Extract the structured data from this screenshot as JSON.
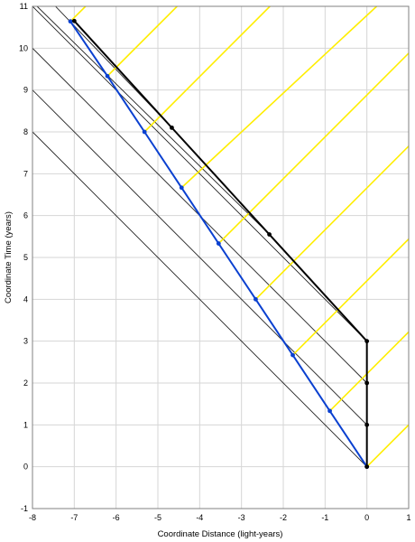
{
  "chart_data": {
    "type": "line",
    "xlabel": "Coordinate Distance (light-years)",
    "ylabel": "Coordinate Time (years)",
    "xlim": [
      -8,
      1
    ],
    "ylim": [
      -1,
      11
    ],
    "x_ticks": [
      -8,
      -7,
      -6,
      -5,
      -4,
      -3,
      -2,
      -1,
      0,
      1
    ],
    "y_ticks": [
      -1,
      0,
      1,
      2,
      3,
      4,
      5,
      6,
      7,
      8,
      9,
      10,
      11
    ],
    "grid": true,
    "legend": "none",
    "colors": {
      "grid": "#d6d6d6",
      "yellow": "#ffee00",
      "thin": "#202020",
      "black": "#000000",
      "blue": "#0a40d0"
    },
    "series": [
      {
        "style": "blue-path",
        "x": [
          0,
          -0.887,
          -1.773,
          -2.66,
          -3.547,
          -4.433,
          -5.32,
          -6.207,
          -7.093
        ],
        "y": [
          0,
          1.333,
          2.667,
          4.0,
          5.333,
          6.667,
          8.0,
          9.333,
          10.64
        ]
      },
      {
        "style": "black-path",
        "x": [
          0,
          0,
          0,
          0,
          -2.333,
          -4.667,
          -7.0
        ],
        "y": [
          0,
          1,
          2,
          3,
          5.55,
          8.1,
          10.65
        ]
      }
    ],
    "thin_lines": [
      {
        "x": [
          0,
          -8
        ],
        "y": [
          0,
          8
        ]
      },
      {
        "x": [
          0,
          -8
        ],
        "y": [
          1,
          9
        ]
      },
      {
        "x": [
          0,
          -8
        ],
        "y": [
          2,
          10
        ]
      },
      {
        "x": [
          0,
          -8
        ],
        "y": [
          3,
          11
        ]
      },
      {
        "x": [
          -2.333,
          -7.89
        ],
        "y": [
          5.55,
          11
        ]
      },
      {
        "x": [
          -4.667,
          -7.45
        ],
        "y": [
          8.1,
          11
        ]
      }
    ],
    "yellow_lines": [
      {
        "x": [
          0,
          1
        ],
        "y": [
          0,
          1
        ]
      },
      {
        "x": [
          -0.887,
          1
        ],
        "y": [
          1.333,
          3.22
        ]
      },
      {
        "x": [
          -1.773,
          1
        ],
        "y": [
          2.667,
          5.44
        ]
      },
      {
        "x": [
          -2.66,
          1
        ],
        "y": [
          4.0,
          7.66
        ]
      },
      {
        "x": [
          -3.547,
          1
        ],
        "y": [
          5.333,
          9.88
        ]
      },
      {
        "x": [
          -4.433,
          0.234
        ],
        "y": [
          6.667,
          11
        ]
      },
      {
        "x": [
          -5.32,
          -2.32
        ],
        "y": [
          8.0,
          11
        ]
      },
      {
        "x": [
          -6.207,
          -4.54
        ],
        "y": [
          9.333,
          11
        ]
      },
      {
        "x": [
          -7.093,
          -6.73
        ],
        "y": [
          10.64,
          11
        ]
      }
    ]
  }
}
